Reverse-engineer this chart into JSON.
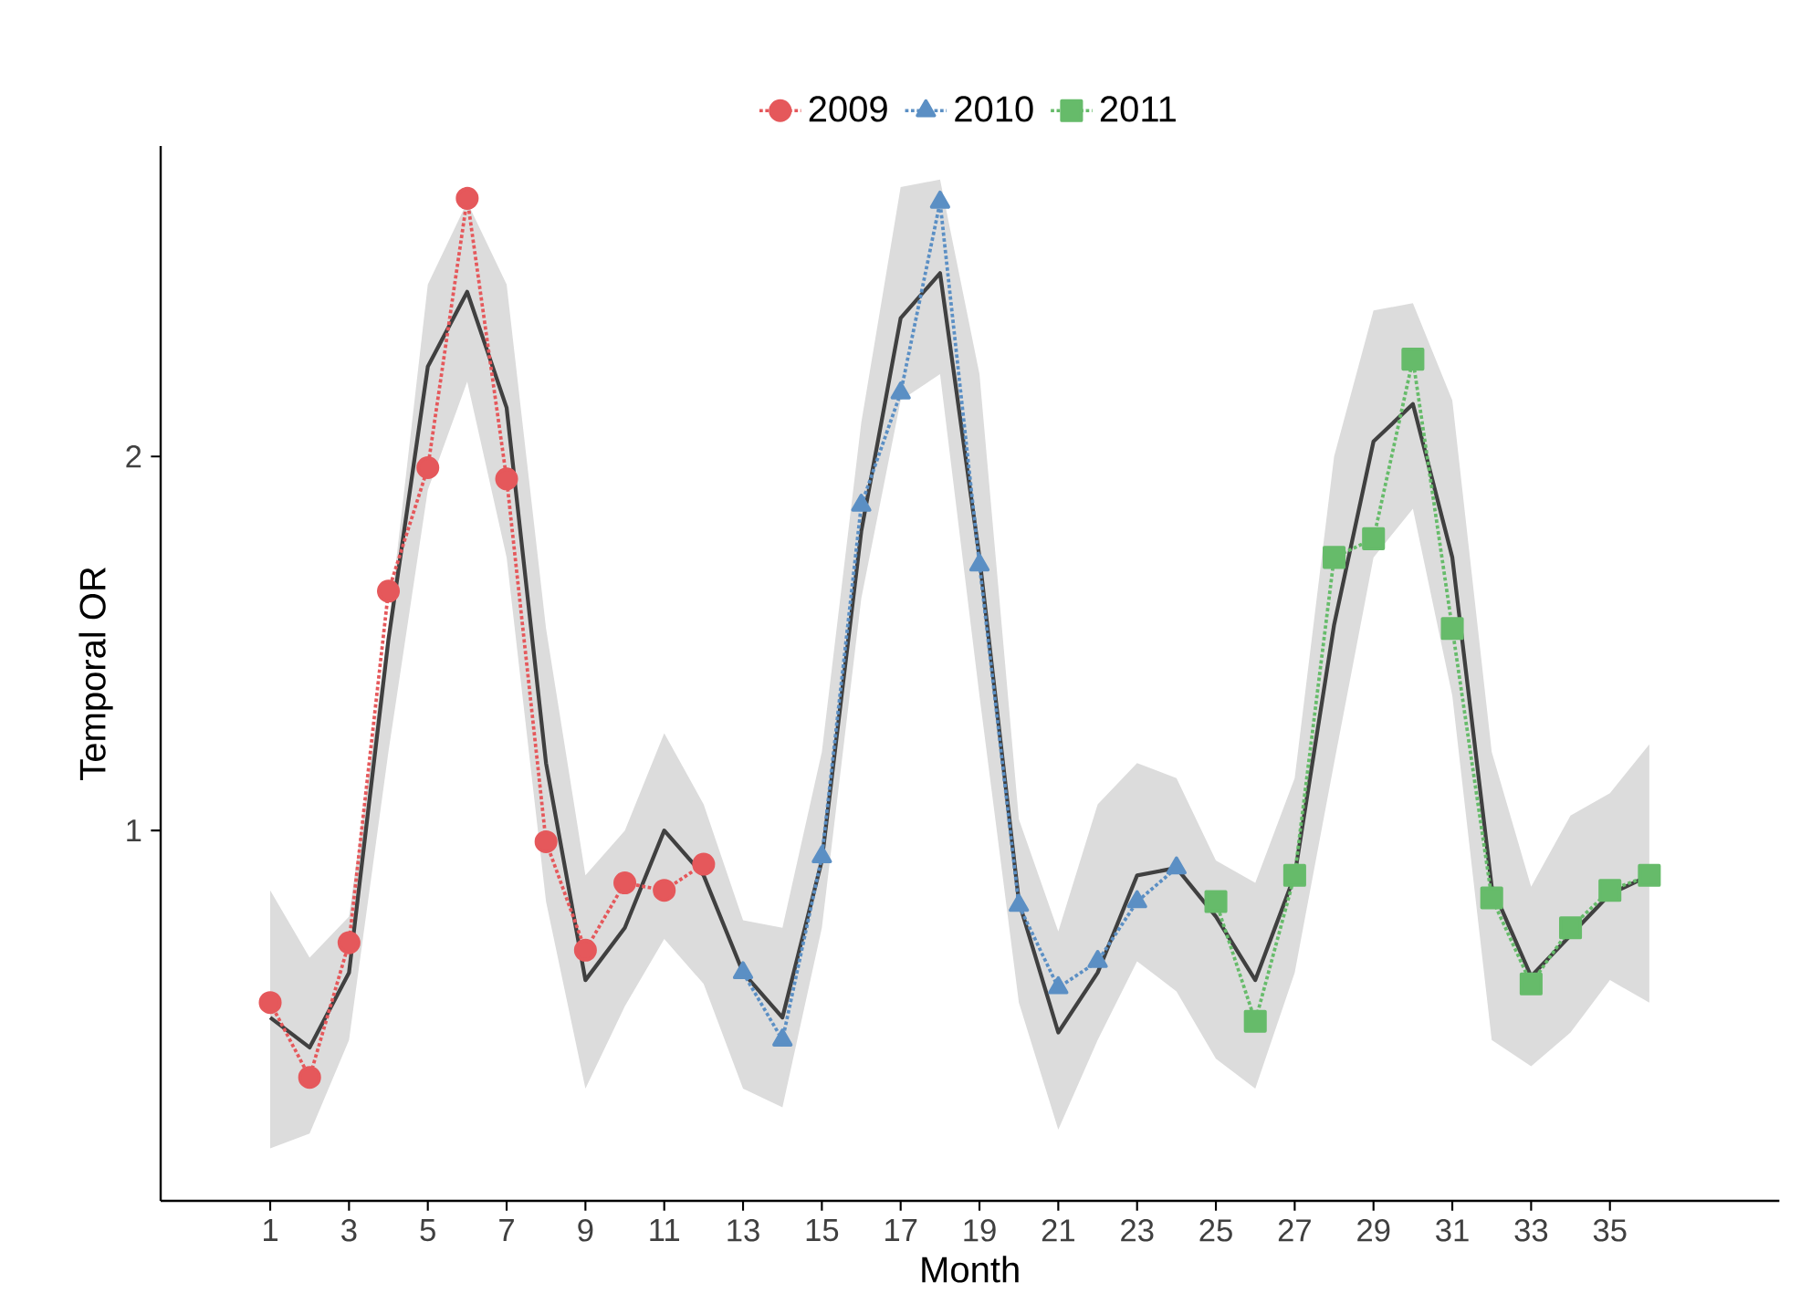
{
  "chart_data": {
    "type": "line",
    "xlabel": "Month",
    "ylabel": "Temporal OR",
    "xlim": [
      -1.78,
      39.3
    ],
    "ylim": [
      0.01,
      2.83
    ],
    "xticks": [
      1,
      3,
      5,
      7,
      9,
      11,
      13,
      15,
      17,
      19,
      21,
      23,
      25,
      27,
      29,
      31,
      33,
      35
    ],
    "yticks": [
      1,
      2
    ],
    "legend": "top",
    "grid": false,
    "series": [
      {
        "color": "#404040",
        "marker": "none",
        "line_style": "solid",
        "x": [
          1,
          2,
          3,
          4,
          5,
          6,
          7,
          8,
          9,
          10,
          11,
          12,
          13,
          14,
          15,
          16,
          17,
          18,
          19,
          20,
          21,
          22,
          23,
          24,
          25,
          26,
          27,
          28,
          29,
          30,
          31,
          32,
          33,
          34,
          35,
          36
        ],
        "values": [
          0.5,
          0.42,
          0.62,
          1.51,
          2.24,
          2.44,
          2.13,
          1.18,
          0.6,
          0.74,
          1.0,
          0.88,
          0.62,
          0.5,
          0.92,
          1.8,
          2.37,
          2.49,
          1.73,
          0.81,
          0.46,
          0.62,
          0.88,
          0.9,
          0.77,
          0.6,
          0.88,
          1.55,
          2.04,
          2.14,
          1.73,
          0.85,
          0.61,
          0.72,
          0.83,
          0.88
        ],
        "upper": [
          0.84,
          0.66,
          0.77,
          1.54,
          2.46,
          2.68,
          2.46,
          1.54,
          0.88,
          1.0,
          1.26,
          1.07,
          0.76,
          0.74,
          1.21,
          2.09,
          2.72,
          2.74,
          2.22,
          1.03,
          0.73,
          1.07,
          1.18,
          1.14,
          0.92,
          0.86,
          1.14,
          2.0,
          2.39,
          2.41,
          2.15,
          1.21,
          0.85,
          1.04,
          1.1,
          1.23
        ],
        "lower": [
          0.15,
          0.19,
          0.44,
          1.21,
          1.91,
          2.2,
          1.73,
          0.81,
          0.31,
          0.53,
          0.71,
          0.59,
          0.31,
          0.26,
          0.74,
          1.62,
          2.15,
          2.22,
          1.36,
          0.54,
          0.2,
          0.44,
          0.65,
          0.57,
          0.39,
          0.31,
          0.62,
          1.18,
          1.73,
          1.86,
          1.36,
          0.44,
          0.37,
          0.46,
          0.6,
          0.54
        ]
      },
      {
        "name": "2009",
        "color": "#e5585b",
        "marker": "circle",
        "line_style": "dotted",
        "x": [
          1,
          2,
          3,
          4,
          5,
          6,
          7,
          8,
          9,
          10,
          11,
          12
        ],
        "values": [
          0.54,
          0.34,
          0.7,
          1.64,
          1.97,
          2.69,
          1.94,
          0.97,
          0.68,
          0.86,
          0.84,
          0.91
        ]
      },
      {
        "name": "2010",
        "color": "#5b8fc4",
        "marker": "triangle",
        "line_style": "dotted",
        "x": [
          13,
          14,
          15,
          16,
          17,
          18,
          19,
          20,
          21,
          22,
          23,
          24
        ],
        "values": [
          0.62,
          0.44,
          0.93,
          1.87,
          2.17,
          2.68,
          1.71,
          0.8,
          0.58,
          0.65,
          0.81,
          0.9
        ]
      },
      {
        "name": "2011",
        "color": "#66bb6a",
        "marker": "square",
        "line_style": "dotted",
        "x": [
          25,
          26,
          27,
          28,
          29,
          30,
          31,
          32,
          33,
          34,
          35,
          36
        ],
        "values": [
          0.81,
          0.49,
          0.88,
          1.73,
          1.78,
          2.26,
          1.54,
          0.82,
          0.59,
          0.74,
          0.84,
          0.88
        ]
      }
    ]
  }
}
